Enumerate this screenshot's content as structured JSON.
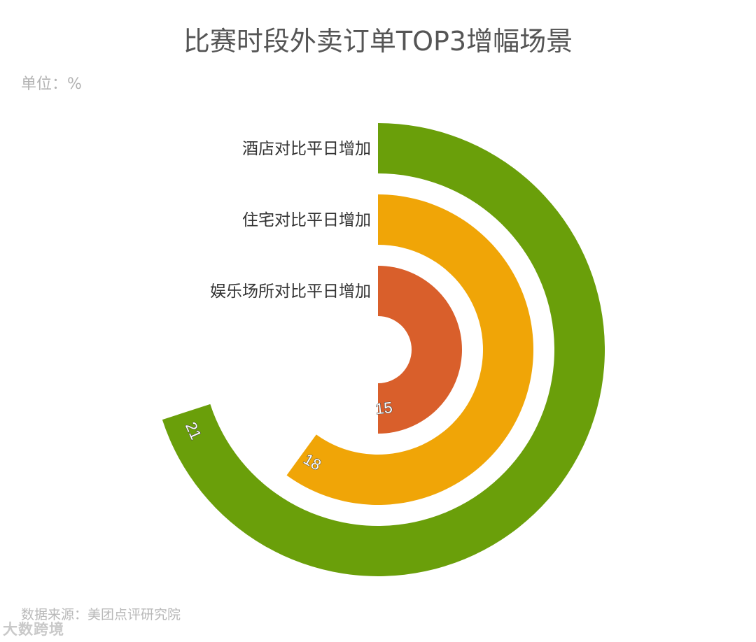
{
  "chart_data": {
    "type": "radial-bar",
    "title": "比赛时段外卖订单TOP3增幅场景",
    "unit": "单位：%",
    "source": "数据来源：美团点评研究院",
    "max": 30,
    "series": [
      {
        "category": "酒店对比平日增加",
        "value": 21,
        "color": "#6a9f0a"
      },
      {
        "category": "住宅对比平日增加",
        "value": 18,
        "color": "#f0a507"
      },
      {
        "category": "娱乐场所对比平日增加",
        "value": 15,
        "color": "#d95f2b"
      }
    ]
  },
  "watermark": "大数跨境"
}
